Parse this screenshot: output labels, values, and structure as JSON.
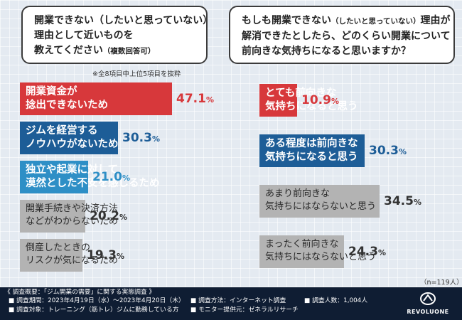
{
  "left_question": {
    "lines": [
      "開業できない（したいと思っていない）",
      "理由として近いものを"
    ],
    "line3_main": "教えてください",
    "line3_small": "（複数回答可）"
  },
  "right_question": {
    "line1_main": "もしも開業できない",
    "line1_small": "（したいと思っていない）",
    "line1_end": "理由が",
    "line2": "解消できたとしたら、どのくらい開業について",
    "line3": "前向きな気持ちになると思いますか？"
  },
  "note_top": "※全8項目中上位5項目を抜粋",
  "note_n": "（n=119人）",
  "chart_data": [
    {
      "type": "bar",
      "orientation": "horizontal",
      "categories": [
        [
          "開業資金が",
          "捻出できないため"
        ],
        [
          "ジムを経営する",
          "ノウハウがないため"
        ],
        [
          "独立や起業に対して",
          "漠然とした不安を感じるため"
        ],
        [
          "開業手続きや決済方法",
          "などがわからないため"
        ],
        [
          "倒産したときの",
          "リスクが気になるため"
        ]
      ],
      "values": [
        47.1,
        30.3,
        21.0,
        20.2,
        19.3
      ],
      "value_labels": [
        "47.1",
        "30.3",
        "21.0",
        "20.2",
        "19.3"
      ],
      "unit": "%",
      "colors": [
        "#d7383b",
        "#1d5d97",
        "#2e8fc6",
        "#b3b3b3",
        "#b3b3b3"
      ],
      "xlim": [
        0,
        100
      ],
      "grid": false
    },
    {
      "type": "bar",
      "orientation": "horizontal",
      "categories": [
        [
          "とても前向きな",
          "気持ちになると思う"
        ],
        [
          "ある程度は前向きな",
          "気持ちになると思う"
        ],
        [
          "あまり前向きな",
          "気持ちにはならないと思う"
        ],
        [
          "まったく前向きな",
          "気持ちにはならないと思う"
        ]
      ],
      "values": [
        10.9,
        30.3,
        34.5,
        24.3
      ],
      "value_labels": [
        "10.9",
        "30.3",
        "34.5",
        "24.3"
      ],
      "unit": "%",
      "colors": [
        "#d7383b",
        "#1d5d97",
        "#b3b3b3",
        "#b3b3b3"
      ],
      "xlim": [
        0,
        100
      ],
      "grid": false
    }
  ],
  "footer": {
    "title": "《 調査概要：「ジム開業の需要」に関する実態調査 》",
    "period": "■ 調査期間：2023年4月19日（水）～2023年4月20日（木）",
    "method": "■ 調査方法：インターネット調査",
    "count": "■ 調査人数：1,004人",
    "target": "■ 調査対象：トレーニング（筋トレ）ジムに勤務している方",
    "provider": "■ モニター提供元：ゼネラルリサーチ",
    "logo": "REVOLUONE"
  }
}
